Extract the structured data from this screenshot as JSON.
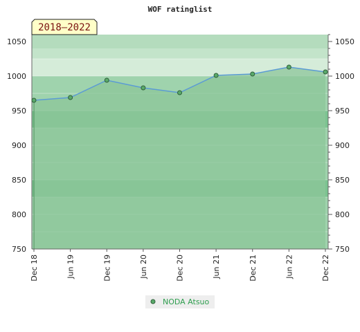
{
  "chart_data": {
    "type": "area",
    "title": "WOF ratinglist",
    "period_badge": "2018–2022",
    "categories": [
      "Dec 18",
      "Jun 19",
      "Dec 19",
      "Jun 20",
      "Dec 20",
      "Jun 21",
      "Dec 21",
      "Jun 22",
      "Dec 22"
    ],
    "y_ticks": [
      750,
      800,
      850,
      900,
      950,
      1000,
      1050
    ],
    "ylim": [
      750,
      1060
    ],
    "series": [
      {
        "name": "NODA Atsuo",
        "values": [
          965,
          969,
          994,
          983,
          976,
          1001,
          1003,
          1013,
          1006
        ]
      }
    ],
    "legend_position": "bottom-center",
    "colors": {
      "line": "#5b9bd5",
      "area": "#8cc69a",
      "marker": "#5aaa6a",
      "band_light": "#9fd3ad",
      "band_dark": "#7bc490",
      "upper_band_light": "#d5ecd9",
      "upper_band_mid": "#c3e4ca",
      "upper_band_dark": "#b4dcbd",
      "badge_fill": "#ffffc8",
      "legend_text": "#2e9e4e"
    }
  }
}
